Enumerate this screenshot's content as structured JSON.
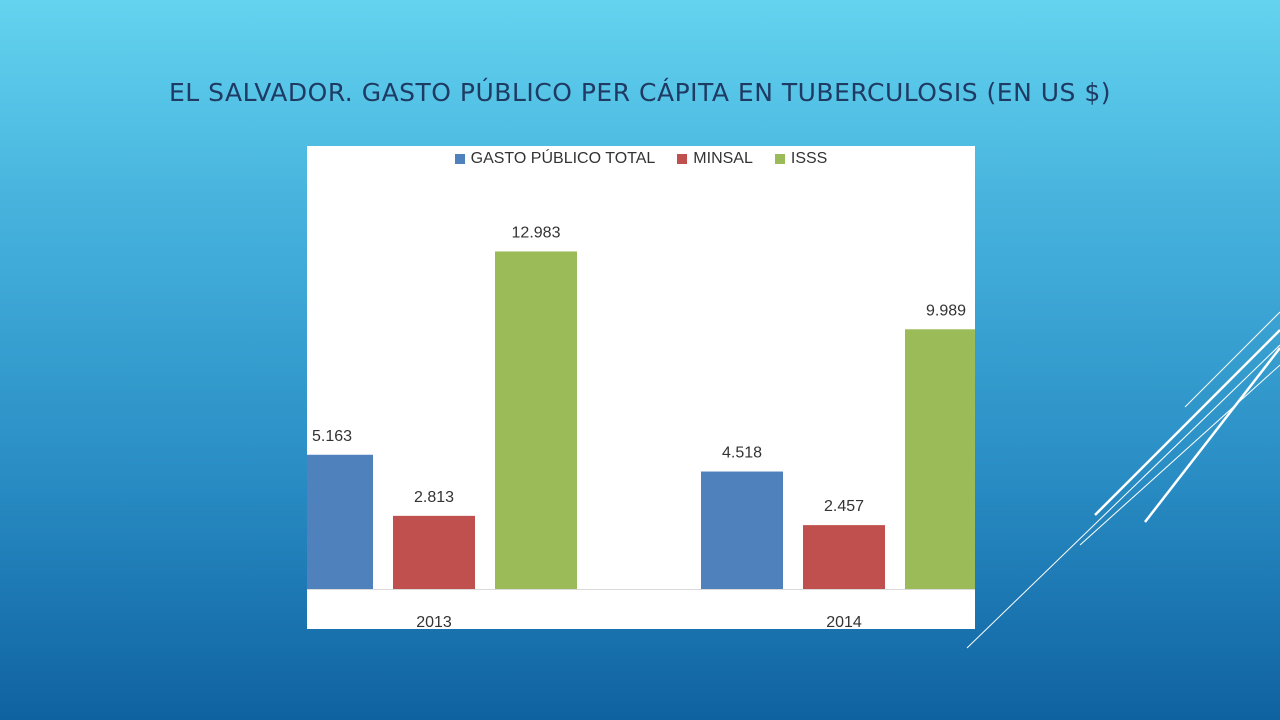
{
  "title": "EL SALVADOR. GASTO PÚBLICO PER CÁPITA EN TUBERCULOSIS (EN US $)",
  "chart_data": {
    "type": "bar",
    "categories": [
      "2013",
      "2014"
    ],
    "series": [
      {
        "name": "GASTO PÚBLICO TOTAL",
        "color": "#4f81bd",
        "values": [
          5.163,
          4.518
        ],
        "labels": [
          "5.163",
          "4.518"
        ]
      },
      {
        "name": "MINSAL",
        "color": "#c0504d",
        "values": [
          2.813,
          2.457
        ],
        "labels": [
          "2.813",
          "2.457"
        ]
      },
      {
        "name": "ISSS",
        "color": "#9bbb59",
        "values": [
          12.983,
          9.989
        ],
        "labels": [
          "12.983",
          "9.989"
        ]
      }
    ],
    "ylim": [
      0,
      15.5
    ],
    "legend_position": "top",
    "grid": false
  },
  "colors": {
    "title": "#1f3a63",
    "decoration": "#ffffff"
  }
}
